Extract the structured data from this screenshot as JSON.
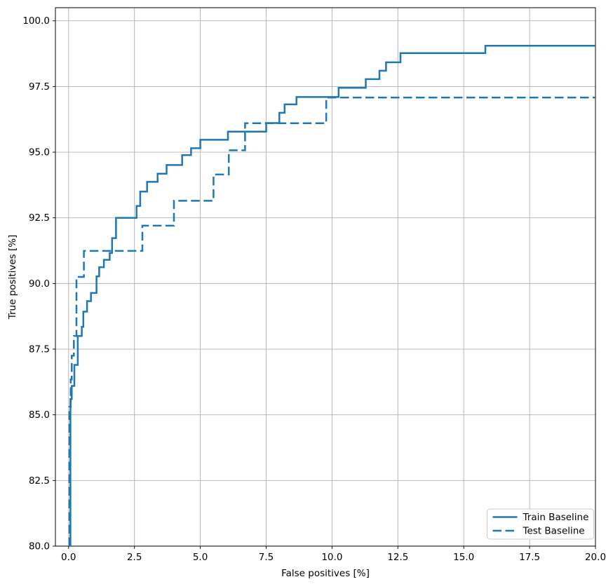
{
  "chart_data": {
    "type": "line",
    "subtype": "step-roc",
    "title": "",
    "xlabel": "False positives [%]",
    "ylabel": "True positives [%]",
    "xlim": [
      -0.5,
      20
    ],
    "ylim": [
      80,
      100.5
    ],
    "grid": true,
    "grid_color": "#b0b0b0",
    "spine_color": "#000000",
    "line_color": "#1f77b4",
    "x_ticks": [
      0,
      2.5,
      5,
      7.5,
      10,
      12.5,
      15,
      17.5,
      20
    ],
    "x_tick_labels": [
      "0.0",
      "2.5",
      "5.0",
      "7.5",
      "10.0",
      "12.5",
      "15.0",
      "17.5",
      "20.0"
    ],
    "y_ticks": [
      80,
      82.5,
      85,
      87.5,
      90,
      92.5,
      95,
      97.5,
      100
    ],
    "y_tick_labels": [
      "80.0",
      "82.5",
      "85.0",
      "87.5",
      "90.0",
      "92.5",
      "95.0",
      "97.5",
      "100.0"
    ],
    "legend": {
      "position": "lower-right"
    },
    "series": [
      {
        "name": "Train Baseline",
        "style": "solid",
        "points": [
          [
            0.07,
            80.0
          ],
          [
            0.07,
            85.6
          ],
          [
            0.12,
            85.6
          ],
          [
            0.12,
            86.1
          ],
          [
            0.22,
            86.1
          ],
          [
            0.22,
            86.9
          ],
          [
            0.35,
            86.9
          ],
          [
            0.35,
            88.0
          ],
          [
            0.5,
            88.0
          ],
          [
            0.5,
            88.35
          ],
          [
            0.56,
            88.35
          ],
          [
            0.56,
            88.93
          ],
          [
            0.7,
            88.93
          ],
          [
            0.7,
            89.33
          ],
          [
            0.85,
            89.33
          ],
          [
            0.85,
            89.64
          ],
          [
            1.06,
            89.64
          ],
          [
            1.06,
            90.27
          ],
          [
            1.16,
            90.27
          ],
          [
            1.16,
            90.62
          ],
          [
            1.34,
            90.62
          ],
          [
            1.34,
            90.9
          ],
          [
            1.56,
            90.9
          ],
          [
            1.56,
            91.16
          ],
          [
            1.65,
            91.16
          ],
          [
            1.65,
            91.73
          ],
          [
            1.8,
            91.73
          ],
          [
            1.8,
            92.5
          ],
          [
            2.58,
            92.5
          ],
          [
            2.58,
            92.95
          ],
          [
            2.72,
            92.95
          ],
          [
            2.72,
            93.5
          ],
          [
            2.98,
            93.5
          ],
          [
            2.98,
            93.87
          ],
          [
            3.38,
            93.87
          ],
          [
            3.38,
            94.18
          ],
          [
            3.72,
            94.18
          ],
          [
            3.72,
            94.51
          ],
          [
            4.31,
            94.51
          ],
          [
            4.31,
            94.89
          ],
          [
            4.65,
            94.89
          ],
          [
            4.65,
            95.15
          ],
          [
            5.0,
            95.15
          ],
          [
            5.0,
            95.47
          ],
          [
            6.05,
            95.47
          ],
          [
            6.05,
            95.78
          ],
          [
            7.5,
            95.78
          ],
          [
            7.5,
            96.11
          ],
          [
            8.0,
            96.11
          ],
          [
            8.0,
            96.5
          ],
          [
            8.2,
            96.5
          ],
          [
            8.2,
            96.82
          ],
          [
            8.65,
            96.82
          ],
          [
            8.65,
            97.1
          ],
          [
            10.25,
            97.1
          ],
          [
            10.25,
            97.45
          ],
          [
            11.28,
            97.45
          ],
          [
            11.28,
            97.78
          ],
          [
            11.8,
            97.78
          ],
          [
            11.8,
            98.1
          ],
          [
            12.05,
            98.1
          ],
          [
            12.05,
            98.42
          ],
          [
            12.6,
            98.42
          ],
          [
            12.6,
            98.77
          ],
          [
            15.82,
            98.77
          ],
          [
            15.82,
            99.05
          ],
          [
            20.0,
            99.05
          ]
        ]
      },
      {
        "name": "Test Baseline",
        "style": "dashed",
        "points": [
          [
            0.03,
            80.0
          ],
          [
            0.03,
            85.3
          ],
          [
            0.08,
            85.3
          ],
          [
            0.08,
            86.35
          ],
          [
            0.12,
            86.35
          ],
          [
            0.12,
            87.25
          ],
          [
            0.2,
            87.25
          ],
          [
            0.2,
            88.0
          ],
          [
            0.3,
            88.0
          ],
          [
            0.3,
            90.25
          ],
          [
            0.58,
            90.25
          ],
          [
            0.58,
            91.24
          ],
          [
            2.8,
            91.24
          ],
          [
            2.8,
            92.2
          ],
          [
            4.0,
            92.2
          ],
          [
            4.0,
            93.15
          ],
          [
            5.5,
            93.15
          ],
          [
            5.5,
            94.15
          ],
          [
            6.08,
            94.15
          ],
          [
            6.08,
            95.07
          ],
          [
            6.7,
            95.07
          ],
          [
            6.7,
            96.1
          ],
          [
            9.78,
            96.1
          ],
          [
            9.78,
            97.08
          ],
          [
            20.0,
            97.08
          ]
        ]
      }
    ]
  }
}
